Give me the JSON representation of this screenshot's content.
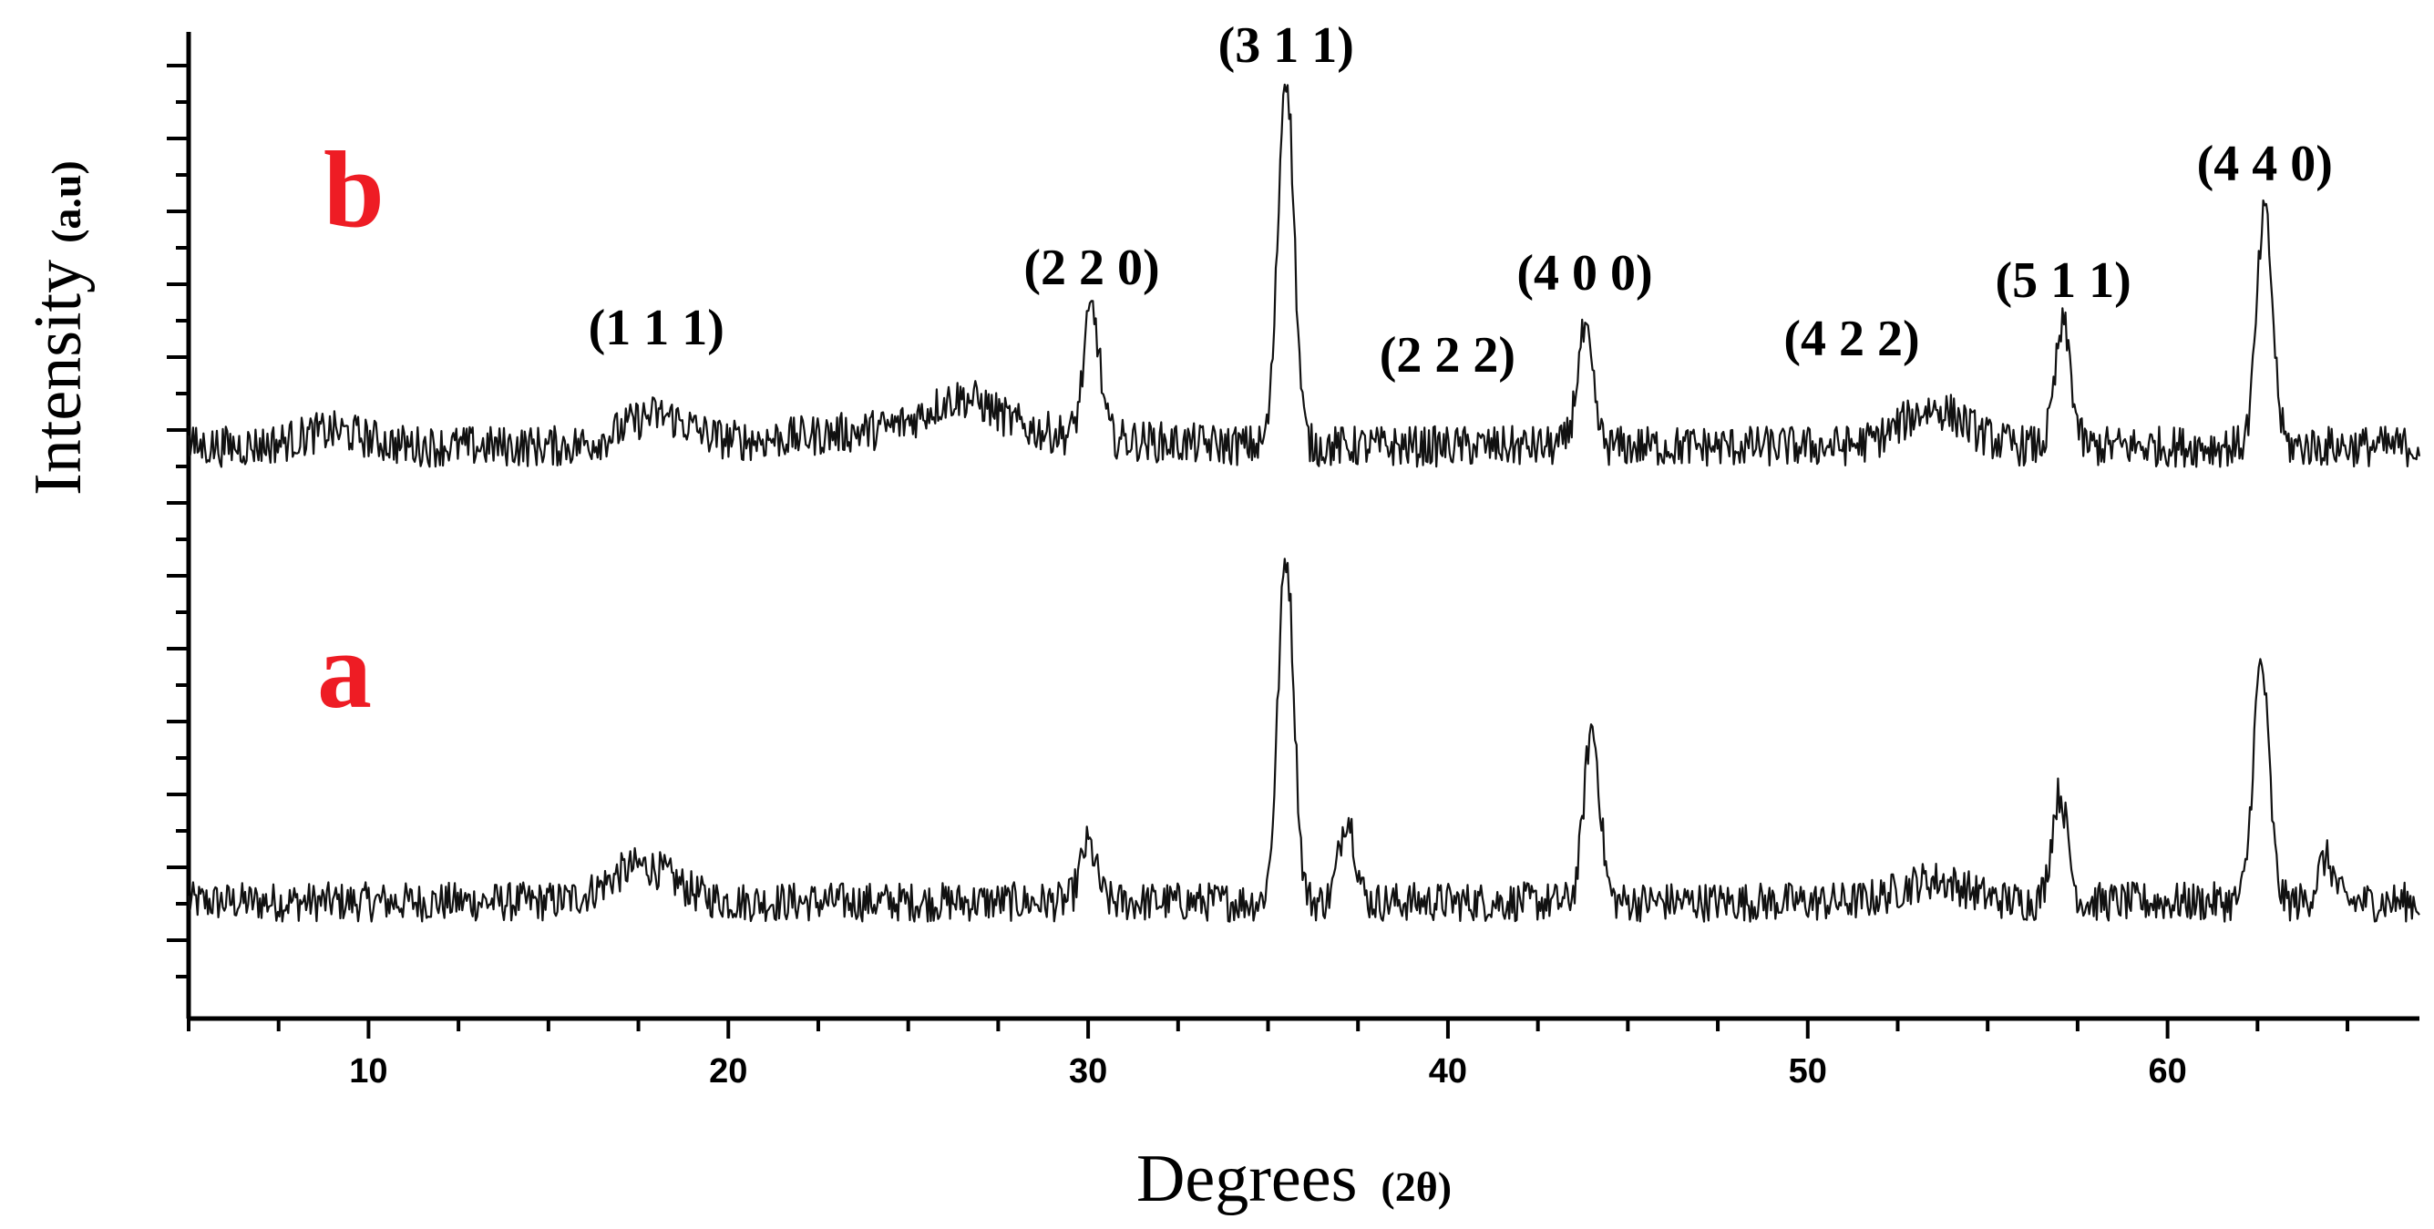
{
  "chart_data": {
    "type": "line",
    "title": "",
    "xlabel": "Degrees",
    "xlabel_unit": "(2θ)",
    "ylabel": "Intensity",
    "ylabel_unit": "(a.u)",
    "xlim": [
      5,
      67
    ],
    "x_ticks": [
      "10",
      "20",
      "30",
      "40",
      "50",
      "60"
    ],
    "grid": false,
    "legend": "none",
    "series": [
      {
        "name": "a",
        "color": "#ee1c24",
        "baseline": 0.0,
        "peaks": [
          {
            "x": 17.6,
            "y": 0.05
          },
          {
            "x": 30.0,
            "y": 0.08
          },
          {
            "x": 35.5,
            "y": 0.48
          },
          {
            "x": 37.2,
            "y": 0.12
          },
          {
            "x": 44.0,
            "y": 0.24
          },
          {
            "x": 53.5,
            "y": 0.03
          },
          {
            "x": 57.0,
            "y": 0.15
          },
          {
            "x": 62.6,
            "y": 0.33
          },
          {
            "x": 64.4,
            "y": 0.06
          }
        ]
      },
      {
        "name": "b",
        "color": "#ee1c24",
        "baseline": 0.0,
        "peaks": [
          {
            "x": 9.0,
            "y": 0.02
          },
          {
            "x": 18.0,
            "y": 0.04
          },
          {
            "x": 26.5,
            "y": 0.04
          },
          {
            "x": 30.1,
            "y": 0.17
          },
          {
            "x": 35.5,
            "y": 0.5
          },
          {
            "x": 43.8,
            "y": 0.15
          },
          {
            "x": 53.5,
            "y": 0.05
          },
          {
            "x": 57.1,
            "y": 0.16
          },
          {
            "x": 62.7,
            "y": 0.31
          }
        ]
      }
    ],
    "annotations": [
      {
        "text": "(1 1 1)",
        "x": 18.0
      },
      {
        "text": "(2 2 0)",
        "x": 30.1
      },
      {
        "text": "(3 1 1)",
        "x": 35.5
      },
      {
        "text": "(2 2 2)",
        "x": 37.2
      },
      {
        "text": "(4 0 0)",
        "x": 43.8
      },
      {
        "text": "(4 2 2)",
        "x": 53.5
      },
      {
        "text": "(5 1 1)",
        "x": 57.1
      },
      {
        "text": "(4 4 0)",
        "x": 62.7
      }
    ]
  }
}
